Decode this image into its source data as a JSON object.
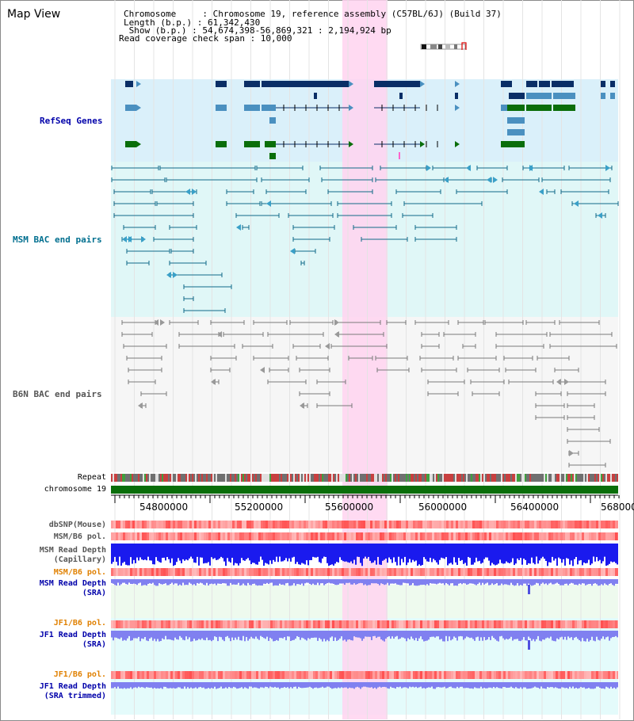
{
  "view_title": "Map View",
  "info": {
    "chromosome_line": "Chromosome     : Chromosome 19, reference assembly (C57BL/6J) (Build 37)",
    "length_line": "Length (b.p.) : 61,342,430",
    "show_line": " Show (b.p.) : 54,674,398-56,869,321 : 2,194,924 bp",
    "coverage_line": "Read coverage check span : 10,000"
  },
  "tracks": {
    "refseq": "RefSeq Genes",
    "msm_bac": "MSM BAC end pairs",
    "b6n_bac": "B6N BAC end pairs",
    "repeat": "Repeat",
    "chromosome": "chromosome 19",
    "dbsnp": "dbSNP(Mouse)",
    "msm_b6_pol_1": "MSM/B6 pol.",
    "msm_depth_cap_1": "MSM Read Depth",
    "msm_depth_cap_2": "(Capillary)",
    "msm_b6_pol_2": "MSM/B6 pol.",
    "msm_depth_sra_1": "MSM Read Depth",
    "msm_depth_sra_2": "(SRA)",
    "jf1_b6_pol_1": "JF1/B6 pol.",
    "jf1_depth_sra_1": "JF1 Read Depth",
    "jf1_depth_sra_2": "(SRA)",
    "jf1_b6_pol_2": "JF1/B6 pol.",
    "jf1_depth_trim_1": "JF1 Read Depth",
    "jf1_depth_trim_2": "(SRA trimmed)"
  },
  "ruler": {
    "ticks": [
      "54800000",
      "55200000",
      "55600000",
      "56000000",
      "56400000",
      "56800000"
    ]
  },
  "colors": {
    "refseq_bg": "#daf0fa",
    "msm_bac_bg": "#e0f7f7",
    "b6n_bac_bg": "#f5f5f5",
    "highlight": "#ffd3f0",
    "label_blue": "#0000aa",
    "label_teal": "#006f8f",
    "label_gray": "#555555",
    "label_orange": "#e08000",
    "gene_dark": "#0a2e66",
    "gene_mid": "#4a90c0",
    "gene_green": "#0a6e0a",
    "chromosome_green": "#0a6e0a",
    "depth_blue": "#1a1aee",
    "depth_light": "#8080f0"
  }
}
